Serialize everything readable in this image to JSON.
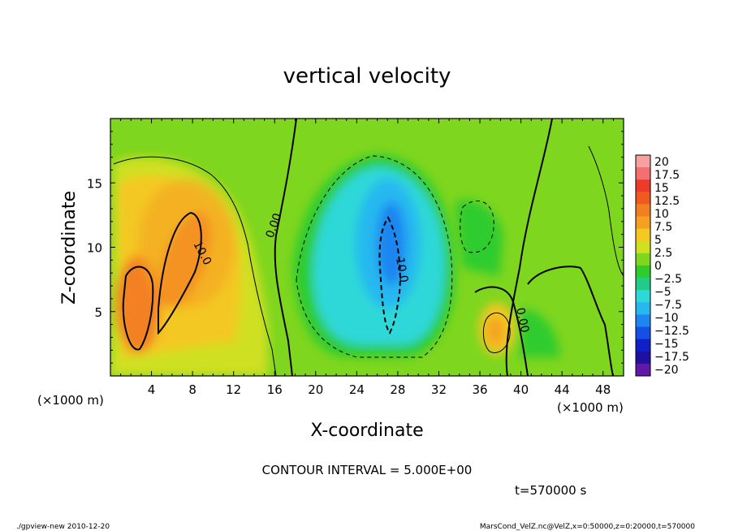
{
  "chart_data": {
    "type": "heatmap",
    "title": "vertical velocity",
    "xlabel": "X-coordinate",
    "ylabel": "Z-coordinate",
    "x_unit": "(×1000 m)",
    "y_unit": "(×1000 m)",
    "xlim": [
      0,
      50
    ],
    "ylim": [
      0,
      20
    ],
    "x_ticks": [
      "4",
      "8",
      "12",
      "16",
      "20",
      "24",
      "28",
      "32",
      "36",
      "40",
      "44",
      "48"
    ],
    "y_ticks": [
      "5",
      "10",
      "15"
    ],
    "colorbar_labels": [
      "20",
      "17.5",
      "15",
      "12.5",
      "10",
      "7.5",
      "5",
      "2.5",
      "0",
      "−2.5",
      "−5",
      "−7.5",
      "−10",
      "−12.5",
      "−15",
      "−17.5",
      "−20"
    ],
    "colorbar_colors": [
      "#f7a0a0",
      "#f46f6f",
      "#ef3a2a",
      "#f05a20",
      "#f38020",
      "#f4a020",
      "#f4c820",
      "#cfe020",
      "#7fd61e",
      "#2ecc2e",
      "#22cc88",
      "#2fd8d8",
      "#28b8f0",
      "#1e86f0",
      "#1450e8",
      "#1020c8",
      "#2010a0",
      "#6018a8"
    ],
    "contour_labels": [
      {
        "text": "10.0",
        "x": 8.2,
        "y": 10.5
      },
      {
        "text": "0.00",
        "x": 16.8,
        "y": 11.6
      },
      {
        "text": "10.0",
        "x": 28.5,
        "y": 9.2
      },
      {
        "text": "0.00",
        "x": 40.2,
        "y": 5.2
      }
    ],
    "annotation": "CONTOUR INTERVAL = 5.000E+00",
    "time_label": "t=570000 s"
  },
  "footer": {
    "left": "./gpview-new  2010-12-20",
    "right": "MarsCond_VelZ.nc@VelZ,x=0:50000,z=0:20000,t=570000"
  }
}
